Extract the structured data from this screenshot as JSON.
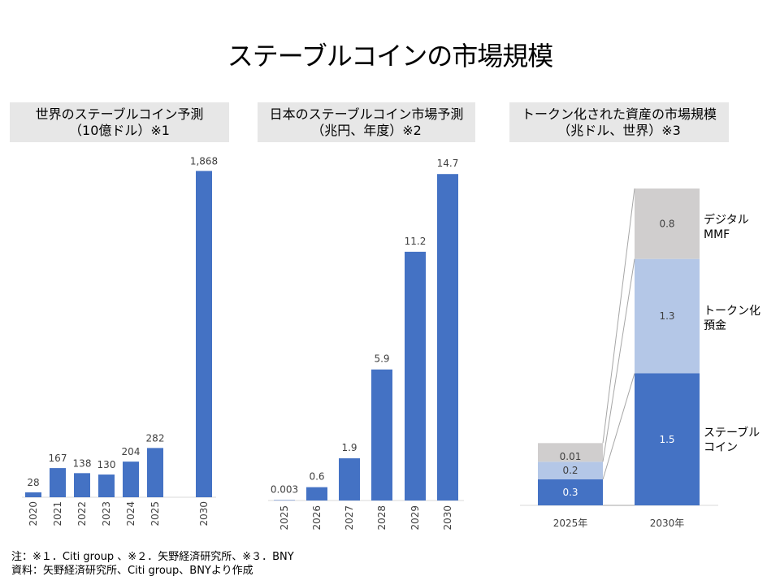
{
  "title": "ステーブルコインの市場規模",
  "panels": [
    {
      "header_line1": "世界のステーブルコイン予測",
      "header_line2": "（10億ドル）※1"
    },
    {
      "header_line1": "日本のステーブルコイン市場予測",
      "header_line2": "（兆円、年度）※2"
    },
    {
      "header_line1": "トークン化された資産の市場規模",
      "header_line2": "（兆ドル、世界）※3"
    }
  ],
  "notes": {
    "line1": "注：※１．Citi group 、※２．矢野経済研究所、※３．BNY",
    "line2": "資料：矢野経済研究所、Citi group、BNYより作成"
  },
  "colors": {
    "blue": "#4472c4",
    "light_blue": "#b4c7e7",
    "gray": "#d0cece"
  },
  "chart_data": [
    {
      "type": "bar",
      "categories": [
        "2020",
        "2021",
        "2022",
        "2023",
        "2024",
        "2025",
        "2030"
      ],
      "values": [
        28,
        167,
        138,
        130,
        204,
        282,
        1868
      ],
      "value_labels": [
        "28",
        "167",
        "138",
        "130",
        "204",
        "282",
        "1,868"
      ],
      "title": "世界のステーブルコイン予測（10億ドル）※1",
      "ylim": [
        0,
        2000
      ]
    },
    {
      "type": "bar",
      "categories": [
        "2025",
        "2026",
        "2027",
        "2028",
        "2029",
        "2030"
      ],
      "values": [
        0.003,
        0.6,
        1.9,
        5.9,
        11.2,
        14.7
      ],
      "value_labels": [
        "0.003",
        "0.6",
        "1.9",
        "5.9",
        "11.2",
        "14.7"
      ],
      "title": "日本のステーブルコイン市場予測（兆円、年度）※2",
      "ylim": [
        0,
        15
      ]
    },
    {
      "type": "bar",
      "stacked": true,
      "categories": [
        "2025年",
        "2030年"
      ],
      "series": [
        {
          "name": "ステーブルコイン",
          "values": [
            0.3,
            1.5
          ],
          "labels": [
            "0.3",
            "1.5"
          ],
          "color": "#4472c4"
        },
        {
          "name": "トークン化預金",
          "values": [
            0.2,
            1.3
          ],
          "labels": [
            "0.2",
            "1.3"
          ],
          "color": "#b4c7e7"
        },
        {
          "name": "デジタルMMF",
          "values": [
            0.01,
            0.8
          ],
          "labels": [
            "0.01",
            "0.8"
          ],
          "color": "#d0cece"
        }
      ],
      "legend_labels": [
        {
          "lines": [
            "デジタル",
            "MMF"
          ]
        },
        {
          "lines": [
            "トークン化",
            "預金"
          ]
        },
        {
          "lines": [
            "ステーブル",
            "コイン"
          ]
        }
      ],
      "legend": "right",
      "title": "トークン化された資産の市場規模（兆ドル、世界）※3",
      "ylim": [
        0,
        3.6
      ]
    }
  ]
}
